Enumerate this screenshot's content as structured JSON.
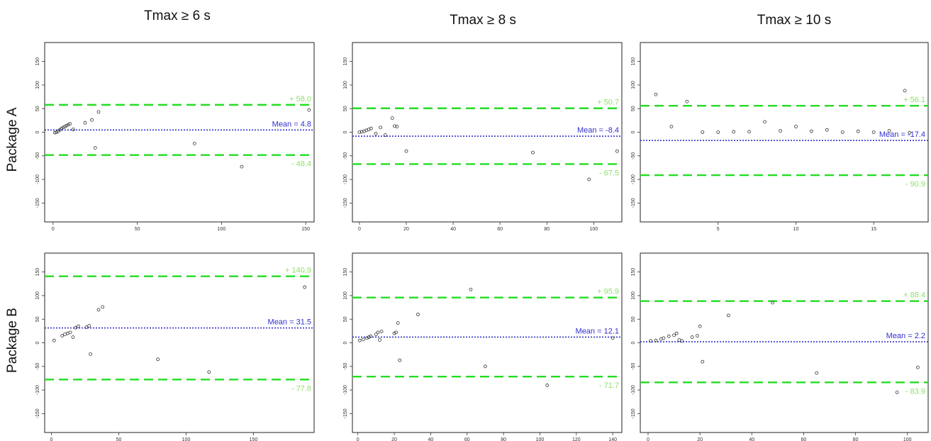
{
  "column_titles": [
    "Tmax ≥ 6 s",
    "Tmax ≥ 8 s",
    "Tmax ≥ 10 s"
  ],
  "row_labels": [
    "Package A",
    "Package B"
  ],
  "colors": {
    "limits": "#22dd22",
    "limits_text": "#8ee06a",
    "mean": "#3333cc",
    "mean_text": "#3030d0",
    "points": "#333333",
    "frame": "#222222"
  },
  "chart_data": [
    {
      "type": "scatter",
      "row": 0,
      "col": 0,
      "xlim": [
        -5,
        155
      ],
      "ylim": [
        -190,
        190
      ],
      "xticks": [
        0,
        50,
        100,
        150
      ],
      "yticks": [
        150,
        100,
        50,
        0,
        -50,
        -100,
        -150
      ],
      "upper": 58.0,
      "upper_label": "+ 58.0",
      "mean": 4.8,
      "mean_label": "Mean = 4.8",
      "lower": -48.4,
      "lower_label": "- 48.4",
      "points": [
        [
          1,
          -1
        ],
        [
          2,
          0
        ],
        [
          3,
          2
        ],
        [
          4,
          5
        ],
        [
          5,
          8
        ],
        [
          6,
          10
        ],
        [
          7,
          12
        ],
        [
          8,
          14
        ],
        [
          9,
          16
        ],
        [
          10,
          18
        ],
        [
          12,
          6
        ],
        [
          19,
          20
        ],
        [
          23,
          26
        ],
        [
          25,
          -33
        ],
        [
          27,
          43
        ],
        [
          84,
          -24
        ],
        [
          112,
          -73
        ],
        [
          152,
          47
        ]
      ]
    },
    {
      "type": "scatter",
      "row": 0,
      "col": 1,
      "xlim": [
        -3,
        112
      ],
      "ylim": [
        -190,
        190
      ],
      "xticks": [
        0,
        20,
        40,
        60,
        80,
        100
      ],
      "yticks": [
        150,
        100,
        50,
        0,
        -50,
        -100,
        -150
      ],
      "upper": 50.7,
      "upper_label": "+ 50.7",
      "mean": -8.4,
      "mean_label": "Mean = -8.4",
      "lower": -67.5,
      "lower_label": "- 67.5",
      "points": [
        [
          0,
          0
        ],
        [
          1,
          1
        ],
        [
          2,
          2
        ],
        [
          3,
          4
        ],
        [
          4,
          6
        ],
        [
          5,
          8
        ],
        [
          7,
          -3
        ],
        [
          9,
          10
        ],
        [
          11,
          -6
        ],
        [
          14,
          30
        ],
        [
          15,
          13
        ],
        [
          16,
          12
        ],
        [
          20,
          -40
        ],
        [
          74,
          -43
        ],
        [
          98,
          -100
        ],
        [
          110,
          -40
        ]
      ]
    },
    {
      "type": "scatter",
      "row": 0,
      "col": 2,
      "xlim": [
        0,
        18.5
      ],
      "ylim": [
        -190,
        190
      ],
      "xticks": [
        5,
        10,
        15
      ],
      "yticks": [
        150,
        100,
        50,
        0,
        -50,
        -100,
        -150
      ],
      "upper": 56.1,
      "upper_label": "+ 56.1",
      "mean": -17.4,
      "mean_label": "Mean = -17.4",
      "lower": -90.9,
      "lower_label": "- 90.9",
      "points": [
        [
          1,
          80
        ],
        [
          2,
          12
        ],
        [
          3,
          65
        ],
        [
          4,
          0
        ],
        [
          5,
          0
        ],
        [
          6,
          1
        ],
        [
          7,
          1
        ],
        [
          8,
          22
        ],
        [
          9,
          3
        ],
        [
          10,
          12
        ],
        [
          11,
          2
        ],
        [
          12,
          5
        ],
        [
          13,
          0
        ],
        [
          14,
          2
        ],
        [
          15,
          0
        ],
        [
          16,
          3
        ],
        [
          17,
          88
        ],
        [
          17.3,
          -1
        ]
      ]
    },
    {
      "type": "scatter",
      "row": 1,
      "col": 0,
      "xlim": [
        -5,
        195
      ],
      "ylim": [
        -190,
        190
      ],
      "xticks": [
        0,
        50,
        100,
        150
      ],
      "yticks": [
        150,
        100,
        50,
        0,
        -50,
        -100,
        -150
      ],
      "upper": 140.9,
      "upper_label": "+ 140.9",
      "mean": 31.5,
      "mean_label": "Mean = 31.5",
      "lower": -77.8,
      "lower_label": "- 77.8",
      "points": [
        [
          2,
          5
        ],
        [
          8,
          15
        ],
        [
          10,
          18
        ],
        [
          12,
          20
        ],
        [
          14,
          22
        ],
        [
          16,
          12
        ],
        [
          18,
          32
        ],
        [
          20,
          35
        ],
        [
          26,
          33
        ],
        [
          28,
          36
        ],
        [
          29,
          -24
        ],
        [
          35,
          70
        ],
        [
          38,
          76
        ],
        [
          79,
          -35
        ],
        [
          117,
          -62
        ],
        [
          188,
          118
        ]
      ]
    },
    {
      "type": "scatter",
      "row": 1,
      "col": 1,
      "xlim": [
        -3,
        145
      ],
      "ylim": [
        -190,
        190
      ],
      "xticks": [
        0,
        20,
        40,
        60,
        80,
        100,
        120,
        140
      ],
      "yticks": [
        150,
        100,
        50,
        0,
        -50,
        -100,
        -150
      ],
      "upper": 95.9,
      "upper_label": "+ 95.9",
      "mean": 12.1,
      "mean_label": "Mean = 12.1",
      "lower": -71.7,
      "lower_label": "- 71.7",
      "points": [
        [
          1,
          5
        ],
        [
          3,
          7
        ],
        [
          5,
          10
        ],
        [
          6,
          12
        ],
        [
          7,
          14
        ],
        [
          10,
          18
        ],
        [
          11,
          22
        ],
        [
          12,
          6
        ],
        [
          13,
          24
        ],
        [
          20,
          20
        ],
        [
          21,
          22
        ],
        [
          22,
          42
        ],
        [
          23,
          -37
        ],
        [
          33,
          60
        ],
        [
          62,
          113
        ],
        [
          70,
          -50
        ],
        [
          104,
          -90
        ],
        [
          140,
          10
        ]
      ]
    },
    {
      "type": "scatter",
      "row": 1,
      "col": 2,
      "xlim": [
        -3,
        108
      ],
      "ylim": [
        -190,
        190
      ],
      "xticks": [
        0,
        20,
        40,
        60,
        80,
        100
      ],
      "yticks": [
        150,
        100,
        50,
        0,
        -50,
        -100,
        -150
      ],
      "upper": 88.4,
      "upper_label": "+ 88.4",
      "mean": 2.2,
      "mean_label": "Mean = 2.2",
      "lower": -83.9,
      "lower_label": "- 83.9",
      "points": [
        [
          1,
          4
        ],
        [
          3,
          5
        ],
        [
          5,
          8
        ],
        [
          6,
          10
        ],
        [
          8,
          14
        ],
        [
          10,
          16
        ],
        [
          11,
          20
        ],
        [
          12,
          6
        ],
        [
          13,
          4
        ],
        [
          17,
          12
        ],
        [
          19,
          15
        ],
        [
          20,
          35
        ],
        [
          21,
          -40
        ],
        [
          31,
          58
        ],
        [
          48,
          85
        ],
        [
          65,
          -64
        ],
        [
          96,
          -105
        ],
        [
          104,
          -52
        ]
      ]
    }
  ]
}
